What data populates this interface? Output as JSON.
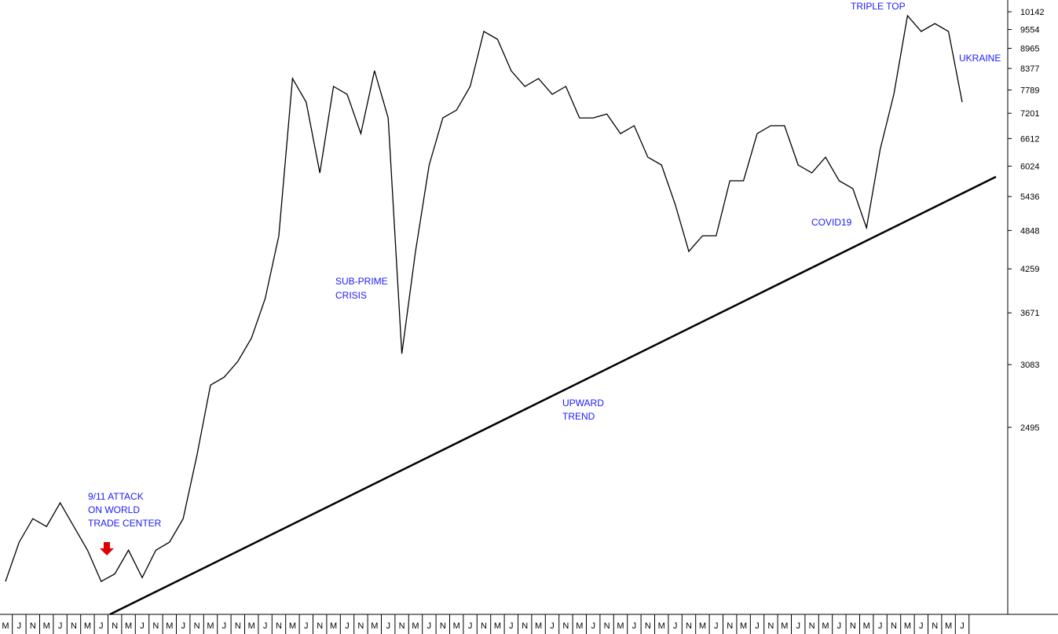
{
  "chart_data": {
    "type": "line",
    "categories": [
      "M",
      "J",
      "N",
      "M",
      "J",
      "N",
      "M",
      "J",
      "N",
      "M",
      "J",
      "N",
      "M",
      "J",
      "N",
      "M",
      "J",
      "N",
      "M",
      "J",
      "N",
      "M",
      "J",
      "N",
      "M",
      "J",
      "N",
      "M",
      "J",
      "N",
      "M",
      "J",
      "N",
      "M",
      "J",
      "N",
      "M",
      "J",
      "N",
      "M",
      "J",
      "N",
      "M",
      "J",
      "N",
      "M",
      "J",
      "N",
      "M",
      "J",
      "N",
      "M",
      "J",
      "N",
      "M",
      "J",
      "N",
      "M",
      "J",
      "N",
      "M",
      "J",
      "N",
      "M",
      "J",
      "N",
      "M",
      "J",
      "N",
      "M",
      "J"
    ],
    "values": [
      1483,
      1693,
      1833,
      1785,
      1933,
      1785,
      1648,
      1483,
      1521,
      1648,
      1502,
      1648,
      1693,
      1833,
      2266,
      2877,
      2955,
      3117,
      3373,
      3852,
      4763,
      8098,
      7476,
      5888,
      7883,
      7675,
      6723,
      8313,
      7089,
      3199,
      4516,
      6048,
      7089,
      7277,
      7883,
      9491,
      9243,
      8313,
      7883,
      8098,
      7675,
      7883,
      7089,
      7089,
      7183,
      6723,
      6905,
      6209,
      6048,
      5295,
      4516,
      4763,
      4763,
      5733,
      5733,
      6723,
      6905,
      6905,
      6048,
      5888,
      6209,
      5733,
      5584,
      4891,
      6375,
      7675,
      10008,
      9491,
      9747,
      9491,
      7476
    ],
    "color": "#000000",
    "log_scale": true,
    "y_axis_side": "right",
    "ylim": [
      1327,
      10554
    ],
    "yticks": [
      2495,
      3083,
      3671,
      4259,
      4848,
      5436,
      6024,
      6612,
      7201,
      7789,
      8377,
      8965,
      9554,
      10142
    ],
    "annotations": [
      "9/11 ATTACK",
      "ON WORLD",
      "TRADE CENTER",
      "SUB-PRIME",
      "CRISIS",
      "UPWARD",
      "TREND",
      "COVID19",
      "TRIPLE TOP",
      "UKRAINE"
    ]
  }
}
